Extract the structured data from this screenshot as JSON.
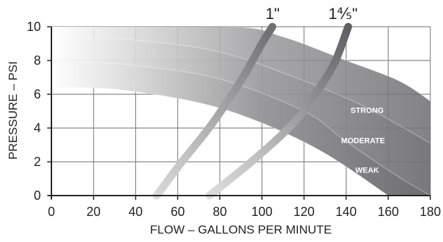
{
  "chart_data": {
    "type": "area",
    "xlabel": "FLOW – GALLONS PER MINUTE",
    "ylabel": "PRESSURE – PSI",
    "xlim": [
      0,
      180
    ],
    "ylim": [
      0,
      10
    ],
    "xticks": [
      "0",
      "20",
      "40",
      "60",
      "80",
      "100",
      "120",
      "140",
      "160",
      "180"
    ],
    "yticks": [
      "0",
      "2",
      "4",
      "6",
      "8",
      "10"
    ],
    "grid": true,
    "bands": [
      {
        "name": "STRONG",
        "upper": [
          [
            0,
            10
          ],
          [
            85,
            10
          ],
          [
            110,
            9.4
          ],
          [
            140,
            8.0
          ],
          [
            165,
            6.8
          ],
          [
            180,
            5.6
          ]
        ],
        "lower": [
          [
            0,
            9.4
          ],
          [
            40,
            9.2
          ],
          [
            80,
            8.5
          ],
          [
            120,
            6.8
          ],
          [
            150,
            5.2
          ],
          [
            180,
            3.1
          ]
        ]
      },
      {
        "name": "MODERATE",
        "upper": [
          [
            0,
            9.4
          ],
          [
            40,
            9.2
          ],
          [
            80,
            8.5
          ],
          [
            120,
            6.8
          ],
          [
            150,
            5.2
          ],
          [
            180,
            3.1
          ]
        ],
        "lower": [
          [
            0,
            8.0
          ],
          [
            40,
            7.7
          ],
          [
            80,
            6.9
          ],
          [
            120,
            5.0
          ],
          [
            140,
            3.2
          ],
          [
            165,
            1.1
          ],
          [
            180,
            0
          ]
        ]
      },
      {
        "name": "WEAK",
        "upper": [
          [
            0,
            8.0
          ],
          [
            40,
            7.7
          ],
          [
            80,
            6.9
          ],
          [
            120,
            5.0
          ],
          [
            140,
            3.2
          ],
          [
            165,
            1.1
          ],
          [
            180,
            0
          ]
        ],
        "lower": [
          [
            0,
            6.4
          ],
          [
            30,
            6.3
          ],
          [
            70,
            5.5
          ],
          [
            100,
            4.3
          ],
          [
            130,
            2.5
          ],
          [
            160,
            0
          ]
        ]
      }
    ],
    "series": [
      {
        "name": "1\"",
        "x": [
          50,
          62,
          76,
          90,
          100,
          105
        ],
        "y": [
          0,
          2.0,
          4.2,
          6.8,
          9.0,
          10
        ]
      },
      {
        "name": "1⅘\"",
        "x": [
          75,
          95,
          115,
          128,
          135,
          141
        ],
        "y": [
          0,
          2.0,
          4.3,
          6.5,
          8.0,
          10
        ]
      }
    ]
  },
  "colors": {
    "gridline": "#888888",
    "band_dark": "#6d6d6f",
    "band_light": "#ffffff",
    "pipe_1_dark": "#6e6e70",
    "pipe_1_light": "#d8d8d8",
    "pipe_2_dark": "#5e5e60",
    "pipe_2_light": "#dcdcdc"
  }
}
